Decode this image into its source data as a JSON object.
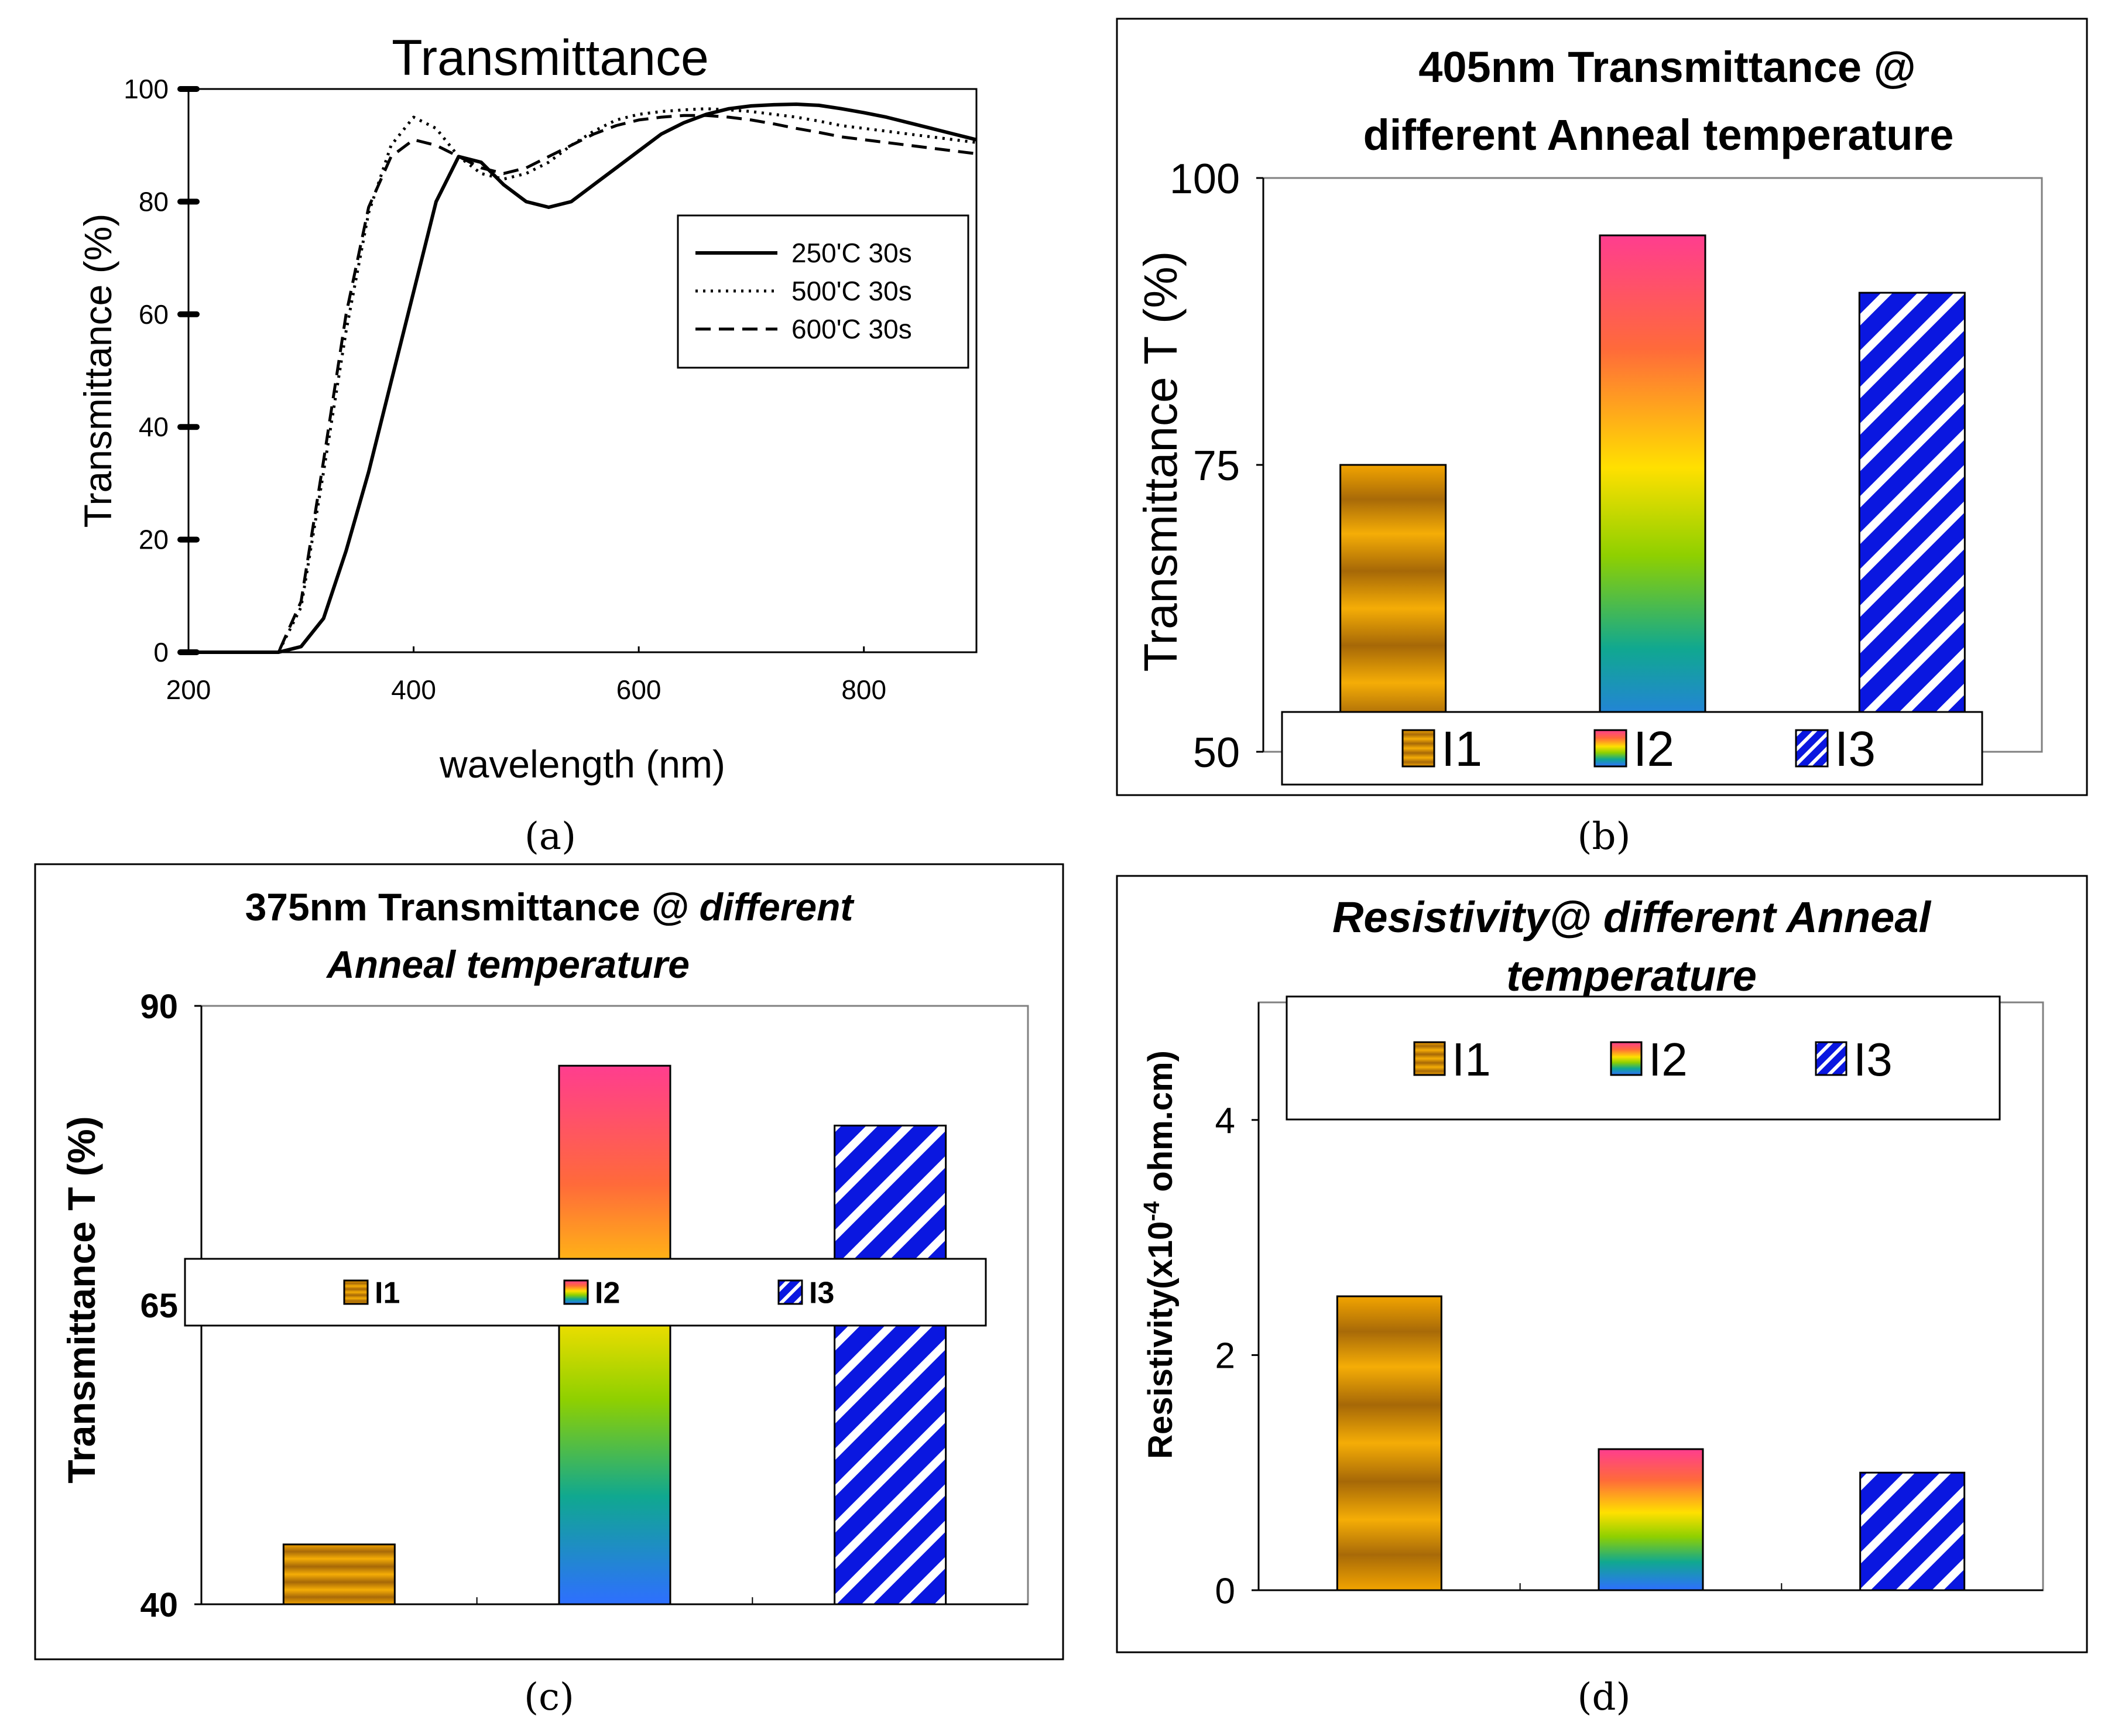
{
  "figure": {
    "panel_labels": [
      "(a)",
      "(b)",
      "(c)",
      "(d)"
    ]
  },
  "chart_data": [
    {
      "type": "line",
      "title": "Transmittance",
      "xlabel": "wavelength (nm)",
      "ylabel": "Transmittance (%)",
      "xlim": [
        200,
        900
      ],
      "ylim": [
        0,
        100
      ],
      "xticks": [
        200,
        400,
        600,
        800
      ],
      "yticks": [
        0,
        20,
        40,
        60,
        80,
        100
      ],
      "legend_position": "right",
      "series": [
        {
          "name": "250'C 30s",
          "style": "solid",
          "x": [
            200,
            280,
            300,
            320,
            340,
            360,
            380,
            400,
            420,
            440,
            460,
            480,
            500,
            520,
            540,
            560,
            580,
            600,
            620,
            640,
            660,
            680,
            700,
            720,
            740,
            760,
            780,
            800,
            820,
            840,
            860,
            880,
            900
          ],
          "y": [
            0,
            0,
            1,
            6,
            18,
            32,
            48,
            64,
            80,
            88,
            87,
            83,
            80,
            79,
            80,
            83,
            86,
            89,
            92,
            94,
            95.5,
            96.5,
            97,
            97.2,
            97.3,
            97.1,
            96.5,
            95.8,
            95,
            94,
            93,
            92,
            91
          ]
        },
        {
          "name": "500'C 30s",
          "style": "dotted",
          "x": [
            200,
            280,
            300,
            320,
            340,
            360,
            380,
            400,
            420,
            440,
            460,
            480,
            500,
            520,
            540,
            560,
            580,
            600,
            620,
            640,
            660,
            680,
            700,
            720,
            740,
            760,
            780,
            800,
            820,
            840,
            860,
            880,
            900
          ],
          "y": [
            0,
            0,
            8,
            32,
            57,
            78,
            90,
            95,
            93,
            88,
            85,
            84,
            85,
            87,
            90,
            92.5,
            94.5,
            95.5,
            96,
            96.3,
            96.5,
            96.3,
            96,
            95.5,
            95,
            94.3,
            93.5,
            93,
            92.5,
            92,
            91.5,
            91,
            90.5
          ]
        },
        {
          "name": "600'C 30s",
          "style": "dashed",
          "x": [
            200,
            280,
            300,
            320,
            340,
            360,
            380,
            400,
            420,
            440,
            460,
            480,
            500,
            520,
            540,
            560,
            580,
            600,
            620,
            640,
            660,
            680,
            700,
            720,
            740,
            760,
            780,
            800,
            820,
            840,
            860,
            880,
            900
          ],
          "y": [
            0,
            0,
            9,
            34,
            60,
            79,
            88,
            91,
            90,
            88,
            86,
            85,
            86,
            88,
            90,
            92,
            93.5,
            94.5,
            95,
            95.3,
            95.3,
            95,
            94.5,
            93.8,
            93,
            92.3,
            91.5,
            91,
            90.5,
            90,
            89.5,
            89,
            88.5
          ]
        }
      ]
    },
    {
      "type": "bar",
      "title": "405nm Transmittance @ different Anneal temperature",
      "title_lines": [
        "405nm Transmittance @",
        "different Anneal temperature"
      ],
      "xlabel": "",
      "ylabel": "Transmittance T (%)",
      "ylim": [
        50,
        100
      ],
      "yticks": [
        50,
        75,
        100
      ],
      "categories": [
        "I1",
        "I2",
        "I3"
      ],
      "values": [
        75,
        95,
        90
      ],
      "legend": [
        "I1",
        "I2",
        "I3"
      ],
      "legend_position": "bottom"
    },
    {
      "type": "bar",
      "title": "375nm Transmittance @ different Anneal temperature",
      "title_lines": [
        "375nm Transmittance ",
        "@ different",
        "Anneal temperature"
      ],
      "xlabel": "",
      "ylabel": "Transmittance T (%)",
      "ylim": [
        40,
        90
      ],
      "yticks": [
        40,
        65,
        90
      ],
      "categories": [
        "I1",
        "I2",
        "I3"
      ],
      "values": [
        45,
        85,
        80
      ],
      "legend": [
        "I1",
        "I2",
        "I3"
      ],
      "legend_position": "center"
    },
    {
      "type": "bar",
      "title": "Resistivity@ different Anneal temperature",
      "title_lines": [
        "Resistivity@ different Anneal",
        "temperature"
      ],
      "xlabel": "",
      "ylabel": "Resistivity(x10-4 ohm.cm)",
      "ylabel_parts": [
        "Resistivity(x10",
        "-4",
        " ohm.cm)"
      ],
      "ylim": [
        0,
        5
      ],
      "yticks": [
        0,
        2,
        4
      ],
      "categories": [
        "I1",
        "I2",
        "I3"
      ],
      "values": [
        2.5,
        1.2,
        1.0
      ],
      "legend": [
        "I1",
        "I2",
        "I3"
      ],
      "legend_position": "top"
    }
  ]
}
